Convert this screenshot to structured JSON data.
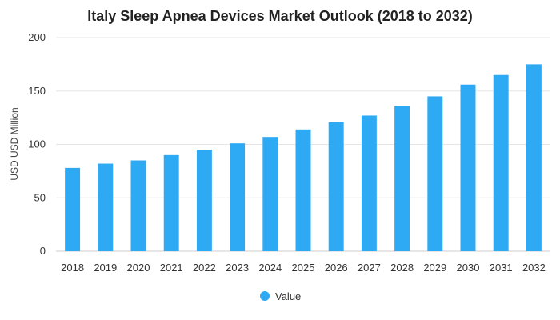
{
  "chart_data": {
    "type": "bar",
    "title": "Italy Sleep Apnea Devices Market Outlook (2018 to 2032)",
    "xlabel": "",
    "ylabel": "USD USD Million",
    "categories": [
      "2018",
      "2019",
      "2020",
      "2021",
      "2022",
      "2023",
      "2024",
      "2025",
      "2026",
      "2027",
      "2028",
      "2029",
      "2030",
      "2031",
      "2032"
    ],
    "series": [
      {
        "name": "Value",
        "values": [
          78,
          82,
          85,
          90,
          95,
          101,
          107,
          114,
          121,
          127,
          136,
          145,
          156,
          165,
          175
        ]
      }
    ],
    "ylim": [
      0,
      200
    ],
    "yticks": [
      0,
      50,
      100,
      150,
      200
    ],
    "grid": true,
    "legend": "bottom",
    "colors": {
      "bar": "#2eaaf5"
    }
  }
}
